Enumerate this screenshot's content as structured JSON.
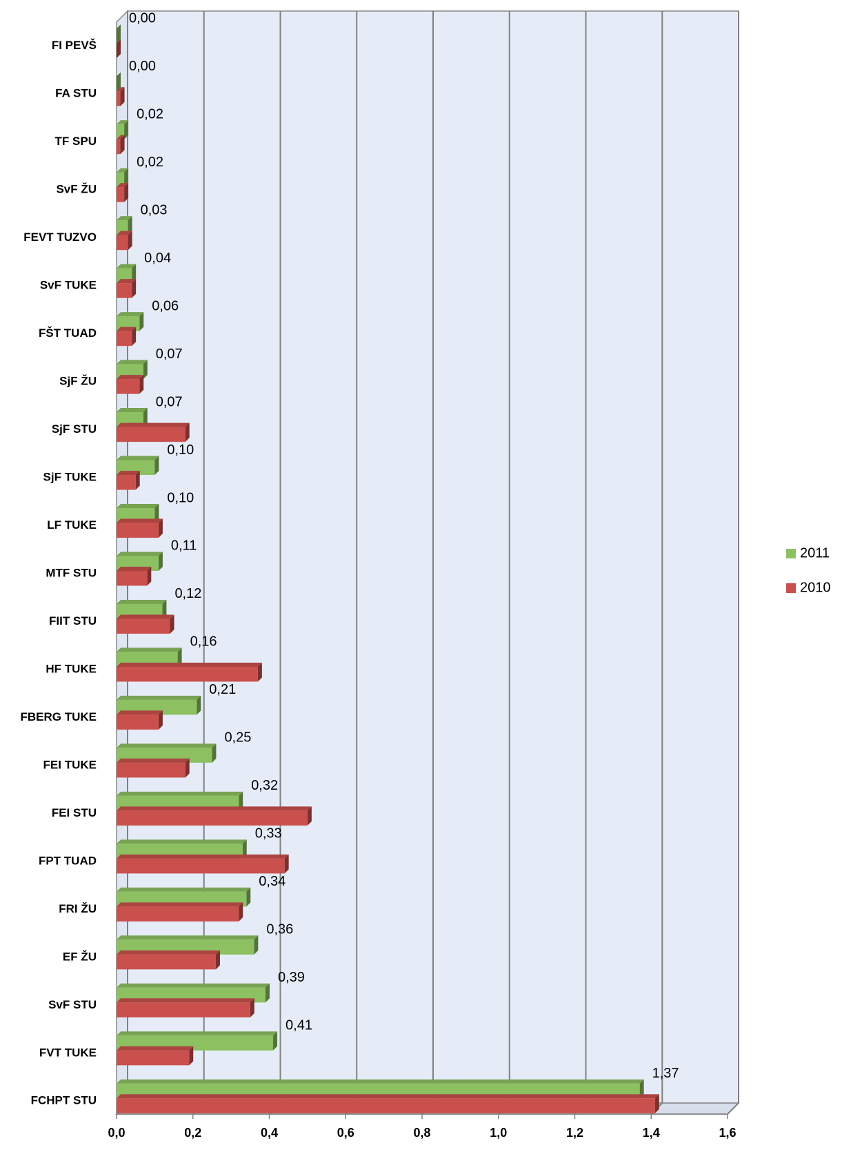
{
  "chart_data": {
    "type": "bar",
    "orientation": "horizontal",
    "categories": [
      "FI PEVŠ",
      "FA STU",
      "TF SPU",
      "SvF ŽU",
      "FEVT TUZVO",
      "SvF TUKE",
      "FŠT TUAD",
      "SjF ŽU",
      "SjF STU",
      "SjF TUKE",
      "LF TUKE",
      "MTF STU",
      "FIIT STU",
      "HF TUKE",
      "FBERG  TUKE",
      "FEI TUKE",
      "FEI STU",
      "FPT TUAD",
      "FRI ŽU",
      "EF ŽU",
      "SvF STU",
      "FVT TUKE",
      "FCHPT STU"
    ],
    "series": [
      {
        "name": "2011",
        "color": "#8cc060",
        "values": [
          0.0,
          0.0,
          0.02,
          0.02,
          0.03,
          0.04,
          0.06,
          0.07,
          0.07,
          0.1,
          0.1,
          0.11,
          0.12,
          0.16,
          0.21,
          0.25,
          0.32,
          0.33,
          0.34,
          0.36,
          0.39,
          0.41,
          1.37
        ],
        "value_labels": [
          "0,00",
          "0,00",
          "0,02",
          "0,02",
          "0,03",
          "0,04",
          "0,06",
          "0,07",
          "0,07",
          "0,10",
          "0,10",
          "0,11",
          "0,12",
          "0,16",
          "0,21",
          "0,25",
          "0,32",
          "0,33",
          "0,34",
          "0,36",
          "0,39",
          "0,41",
          "1,37"
        ]
      },
      {
        "name": "2010",
        "color": "#c9504d",
        "values": [
          0.0,
          0.01,
          0.01,
          0.02,
          0.03,
          0.04,
          0.04,
          0.06,
          0.18,
          0.05,
          0.11,
          0.08,
          0.14,
          0.37,
          0.11,
          0.18,
          0.5,
          0.44,
          0.32,
          0.26,
          0.35,
          0.19,
          1.41
        ]
      }
    ],
    "xlim": [
      0,
      1.6
    ],
    "xticks": [
      {
        "value": 0,
        "label": "0,0"
      },
      {
        "value": 0.2,
        "label": "0,2"
      },
      {
        "value": 0.4,
        "label": "0,4"
      },
      {
        "value": 0.6,
        "label": "0,6"
      },
      {
        "value": 0.8,
        "label": "0,8"
      },
      {
        "value": 1.0,
        "label": "1,0"
      },
      {
        "value": 1.2,
        "label": "1,2"
      },
      {
        "value": 1.4,
        "label": "1,4"
      },
      {
        "value": 1.6,
        "label": "1,6"
      }
    ],
    "grid": true,
    "legend": "right"
  }
}
